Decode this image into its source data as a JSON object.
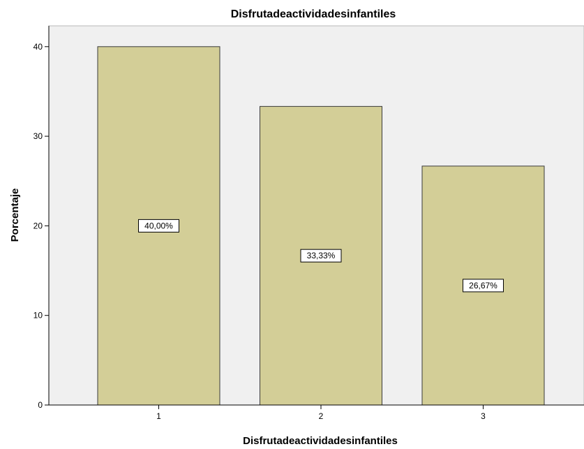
{
  "chart_data": {
    "type": "bar",
    "title": "Disfrutadeactividadesinfantiles",
    "xlabel": "Disfrutadeactividadesinfantiles",
    "ylabel": "Porcentaje",
    "categories": [
      "1",
      "2",
      "3"
    ],
    "values": [
      40.0,
      33.33,
      26.67
    ],
    "data_labels": [
      "40,00%",
      "33,33%",
      "26,67%"
    ],
    "yticks": [
      "0",
      "10",
      "20",
      "30",
      "40"
    ],
    "ylim": [
      0,
      42
    ],
    "grid": false,
    "legend": "none",
    "colors": {
      "plot_background": "#f0f0f0",
      "bar_fill": "#d3ce97",
      "bar_stroke": "#3a3a3a",
      "label_background": "#ffffff"
    }
  }
}
